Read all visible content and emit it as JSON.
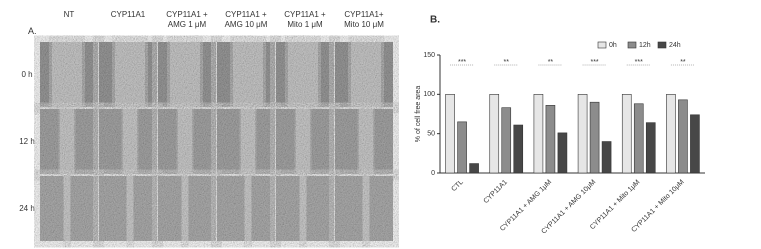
{
  "panel_a": {
    "label": "A.",
    "columns": [
      "NT",
      "CYP11A1",
      "CYP11A1 +\nAMG 1 μM",
      "CYP11A1 +\nAMG 10 μM",
      "CYP11A1 +\nMito 1 μM",
      "CYP11A1+\nMito 10 μM"
    ],
    "rows": [
      "0 h",
      "12 h",
      "24 h"
    ]
  },
  "chart_data": {
    "type": "bar",
    "panel_label": "B.",
    "y_label": "% of cell free area",
    "categories": [
      "CTL",
      "CYP11A1",
      "CYP11A1 + AMG 1μM",
      "CYP11A1 + AMG 10μM",
      "CYP11A1 + Mito 1μM",
      "CYP11A1 + Mito 10μM"
    ],
    "series": [
      {
        "name": "0h",
        "color": "#e6e6e6",
        "values": [
          100,
          100,
          100,
          100,
          100,
          100
        ]
      },
      {
        "name": "12h",
        "color": "#8c8c8c",
        "values": [
          65,
          83,
          86,
          90,
          88,
          93
        ]
      },
      {
        "name": "24h",
        "color": "#474747",
        "values": [
          12,
          61,
          51,
          40,
          64,
          74
        ]
      }
    ],
    "annotations": [
      "***",
      "**",
      "**",
      "***",
      "***",
      "**"
    ],
    "ylim": [
      0,
      150
    ],
    "yticks": [
      0,
      50,
      100,
      150
    ],
    "legend": "top-right"
  }
}
